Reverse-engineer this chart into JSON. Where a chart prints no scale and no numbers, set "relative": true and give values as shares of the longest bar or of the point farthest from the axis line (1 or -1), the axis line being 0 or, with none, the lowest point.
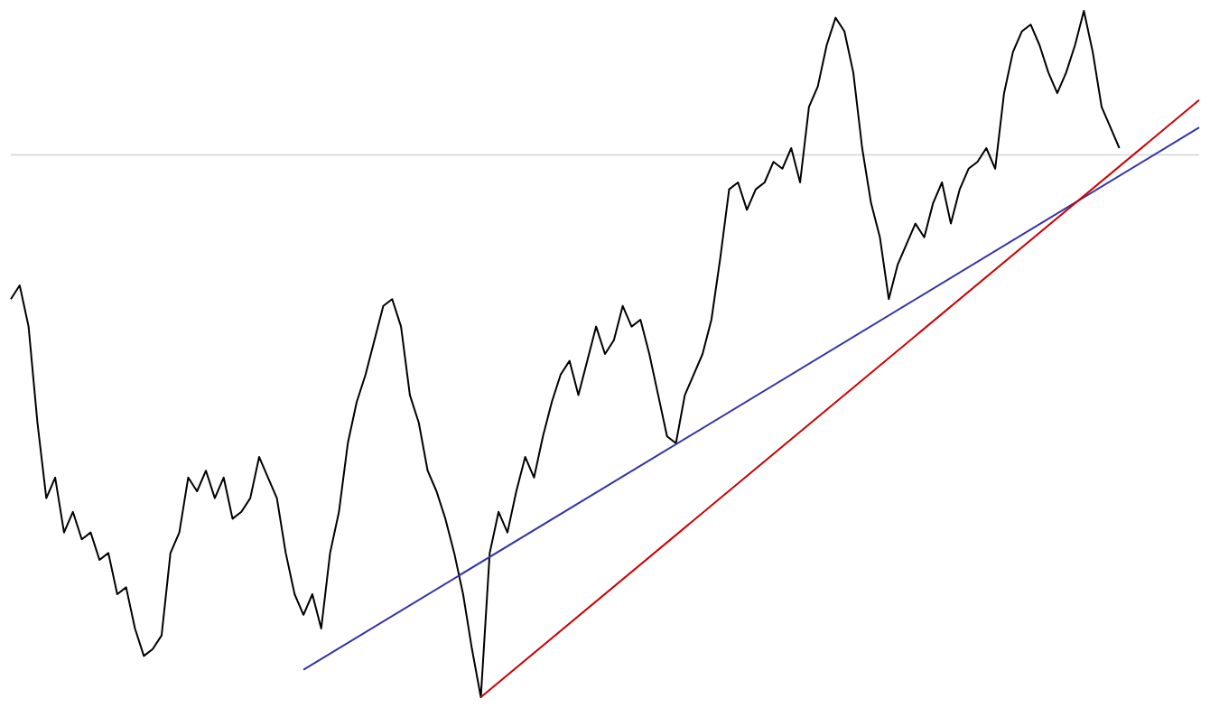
{
  "chart_data": {
    "type": "line",
    "relative": true,
    "tick_labels": false,
    "categories": [
      null,
      null,
      null,
      null,
      null,
      null,
      null,
      null,
      null,
      null,
      null,
      null,
      null,
      null,
      null,
      null,
      null,
      null,
      null,
      null,
      null,
      null,
      null,
      null,
      null,
      null,
      null,
      null,
      null,
      null,
      null,
      null,
      null,
      null,
      null,
      null,
      null,
      null,
      null,
      null,
      null,
      null,
      null,
      null,
      null,
      null,
      null,
      null,
      null,
      null,
      null,
      null,
      null,
      null,
      null,
      null,
      null,
      null,
      null,
      null,
      null,
      null,
      null,
      null,
      null,
      null,
      null,
      null,
      null,
      null,
      null,
      null,
      null,
      null,
      null,
      null,
      null,
      null,
      null,
      null,
      null,
      null,
      null,
      null,
      null,
      null,
      null,
      null,
      null,
      null,
      null,
      null,
      null,
      null,
      null,
      null,
      null,
      null,
      null,
      null,
      null,
      null,
      null,
      null,
      null,
      null,
      null,
      null,
      null,
      null,
      null,
      null,
      null,
      null,
      null,
      null,
      null,
      null,
      null,
      null,
      null,
      null,
      null,
      null,
      null,
      null,
      null,
      null,
      null,
      null,
      null,
      null,
      null,
      null,
      null
    ],
    "series": [
      {
        "color": "#dddddd",
        "values": [
          0.79,
          null,
          null,
          null,
          null,
          null,
          null,
          null,
          null,
          null,
          null,
          null,
          null,
          null,
          null,
          null,
          null,
          null,
          null,
          null,
          null,
          null,
          null,
          null,
          null,
          null,
          null,
          null,
          null,
          null,
          null,
          null,
          null,
          null,
          null,
          null,
          null,
          null,
          null,
          null,
          null,
          null,
          null,
          null,
          null,
          null,
          null,
          null,
          null,
          null,
          null,
          null,
          null,
          null,
          null,
          null,
          null,
          null,
          null,
          null,
          null,
          null,
          null,
          null,
          null,
          null,
          null,
          null,
          null,
          null,
          null,
          null,
          null,
          null,
          null,
          null,
          null,
          null,
          null,
          null,
          null,
          null,
          null,
          null,
          null,
          null,
          null,
          null,
          null,
          null,
          null,
          null,
          null,
          null,
          null,
          null,
          null,
          null,
          null,
          null,
          null,
          null,
          null,
          null,
          null,
          null,
          null,
          null,
          null,
          null,
          null,
          null,
          null,
          null,
          null,
          null,
          null,
          null,
          null,
          null,
          null,
          null,
          null,
          null,
          null,
          null,
          null,
          null,
          null,
          null,
          null,
          null,
          null,
          null,
          0.79
        ]
      },
      {
        "color": "#000000",
        "values": [
          0.58,
          0.6,
          0.54,
          0.4,
          0.29,
          0.32,
          0.24,
          0.27,
          0.23,
          0.24,
          0.2,
          0.21,
          0.15,
          0.16,
          0.1,
          0.06,
          0.07,
          0.09,
          0.21,
          0.24,
          0.32,
          0.3,
          0.33,
          0.29,
          0.32,
          0.26,
          0.27,
          0.29,
          0.35,
          0.32,
          0.29,
          0.21,
          0.15,
          0.12,
          0.15,
          0.1,
          0.21,
          0.27,
          0.37,
          0.43,
          0.47,
          0.52,
          0.57,
          0.58,
          0.54,
          0.44,
          0.4,
          0.33,
          0.3,
          0.26,
          0.21,
          0.15,
          0.07,
          0,
          0.21,
          0.27,
          0.24,
          0.3,
          0.35,
          0.32,
          0.38,
          0.43,
          0.47,
          0.49,
          0.44,
          0.49,
          0.54,
          0.5,
          0.52,
          0.57,
          0.54,
          0.55,
          0.5,
          0.44,
          0.38,
          0.37,
          0.44,
          0.47,
          0.5,
          0.55,
          0.64,
          0.74,
          0.75,
          0.71,
          0.74,
          0.75,
          0.78,
          0.77,
          0.8,
          0.75,
          0.86,
          0.89,
          0.95,
          0.99,
          0.97,
          0.91,
          0.8,
          0.72,
          0.67,
          0.58,
          0.63,
          0.66,
          0.69,
          0.67,
          0.72,
          0.75,
          0.69,
          0.74,
          0.77,
          0.78,
          0.8,
          0.77,
          0.88,
          0.94,
          0.97,
          0.98,
          0.95,
          0.91,
          0.88,
          0.91,
          0.95,
          1.0,
          0.94,
          0.86,
          0.83,
          0.8,
          null,
          null,
          null,
          null,
          null,
          null,
          null,
          null,
          null
        ]
      },
      {
        "type": "line",
        "color": "#3333aa",
        "values": [
          null,
          null,
          null,
          null,
          null,
          null,
          null,
          null,
          null,
          null,
          null,
          null,
          null,
          null,
          null,
          null,
          null,
          null,
          null,
          null,
          null,
          null,
          null,
          null,
          null,
          null,
          null,
          null,
          null,
          null,
          null,
          null,
          null,
          0.04,
          null,
          null,
          null,
          null,
          null,
          null,
          null,
          null,
          null,
          null,
          null,
          null,
          null,
          null,
          null,
          null,
          null,
          null,
          null,
          null,
          null,
          null,
          null,
          null,
          null,
          null,
          null,
          null,
          null,
          null,
          null,
          null,
          null,
          null,
          null,
          null,
          null,
          null,
          null,
          null,
          null,
          null,
          null,
          null,
          null,
          null,
          null,
          null,
          null,
          null,
          null,
          null,
          null,
          null,
          null,
          null,
          null,
          null,
          null,
          null,
          null,
          null,
          null,
          null,
          null,
          null,
          null,
          null,
          null,
          null,
          null,
          null,
          null,
          null,
          null,
          null,
          null,
          null,
          null,
          null,
          null,
          null,
          null,
          null,
          null,
          null,
          null,
          null,
          null,
          null,
          null,
          null,
          null,
          null,
          null,
          null,
          null,
          null,
          null,
          null,
          0.83
        ]
      },
      {
        "type": "line",
        "color": "#cc0000",
        "values": [
          null,
          null,
          null,
          null,
          null,
          null,
          null,
          null,
          null,
          null,
          null,
          null,
          null,
          null,
          null,
          null,
          null,
          null,
          null,
          null,
          null,
          null,
          null,
          null,
          null,
          null,
          null,
          null,
          null,
          null,
          null,
          null,
          null,
          null,
          null,
          null,
          null,
          null,
          null,
          null,
          null,
          null,
          null,
          null,
          null,
          null,
          null,
          null,
          null,
          null,
          null,
          null,
          null,
          0,
          null,
          null,
          null,
          null,
          null,
          null,
          null,
          null,
          null,
          null,
          null,
          null,
          null,
          null,
          null,
          null,
          null,
          null,
          null,
          null,
          null,
          null,
          null,
          null,
          null,
          null,
          null,
          null,
          null,
          null,
          null,
          null,
          null,
          null,
          null,
          null,
          null,
          null,
          null,
          null,
          null,
          null,
          null,
          null,
          null,
          null,
          null,
          null,
          null,
          null,
          null,
          null,
          null,
          null,
          null,
          null,
          null,
          null,
          null,
          null,
          null,
          null,
          null,
          null,
          null,
          null,
          null,
          null,
          null,
          null,
          null,
          null,
          null,
          null,
          null,
          null,
          null,
          null,
          null,
          null,
          0.87
        ]
      }
    ]
  }
}
